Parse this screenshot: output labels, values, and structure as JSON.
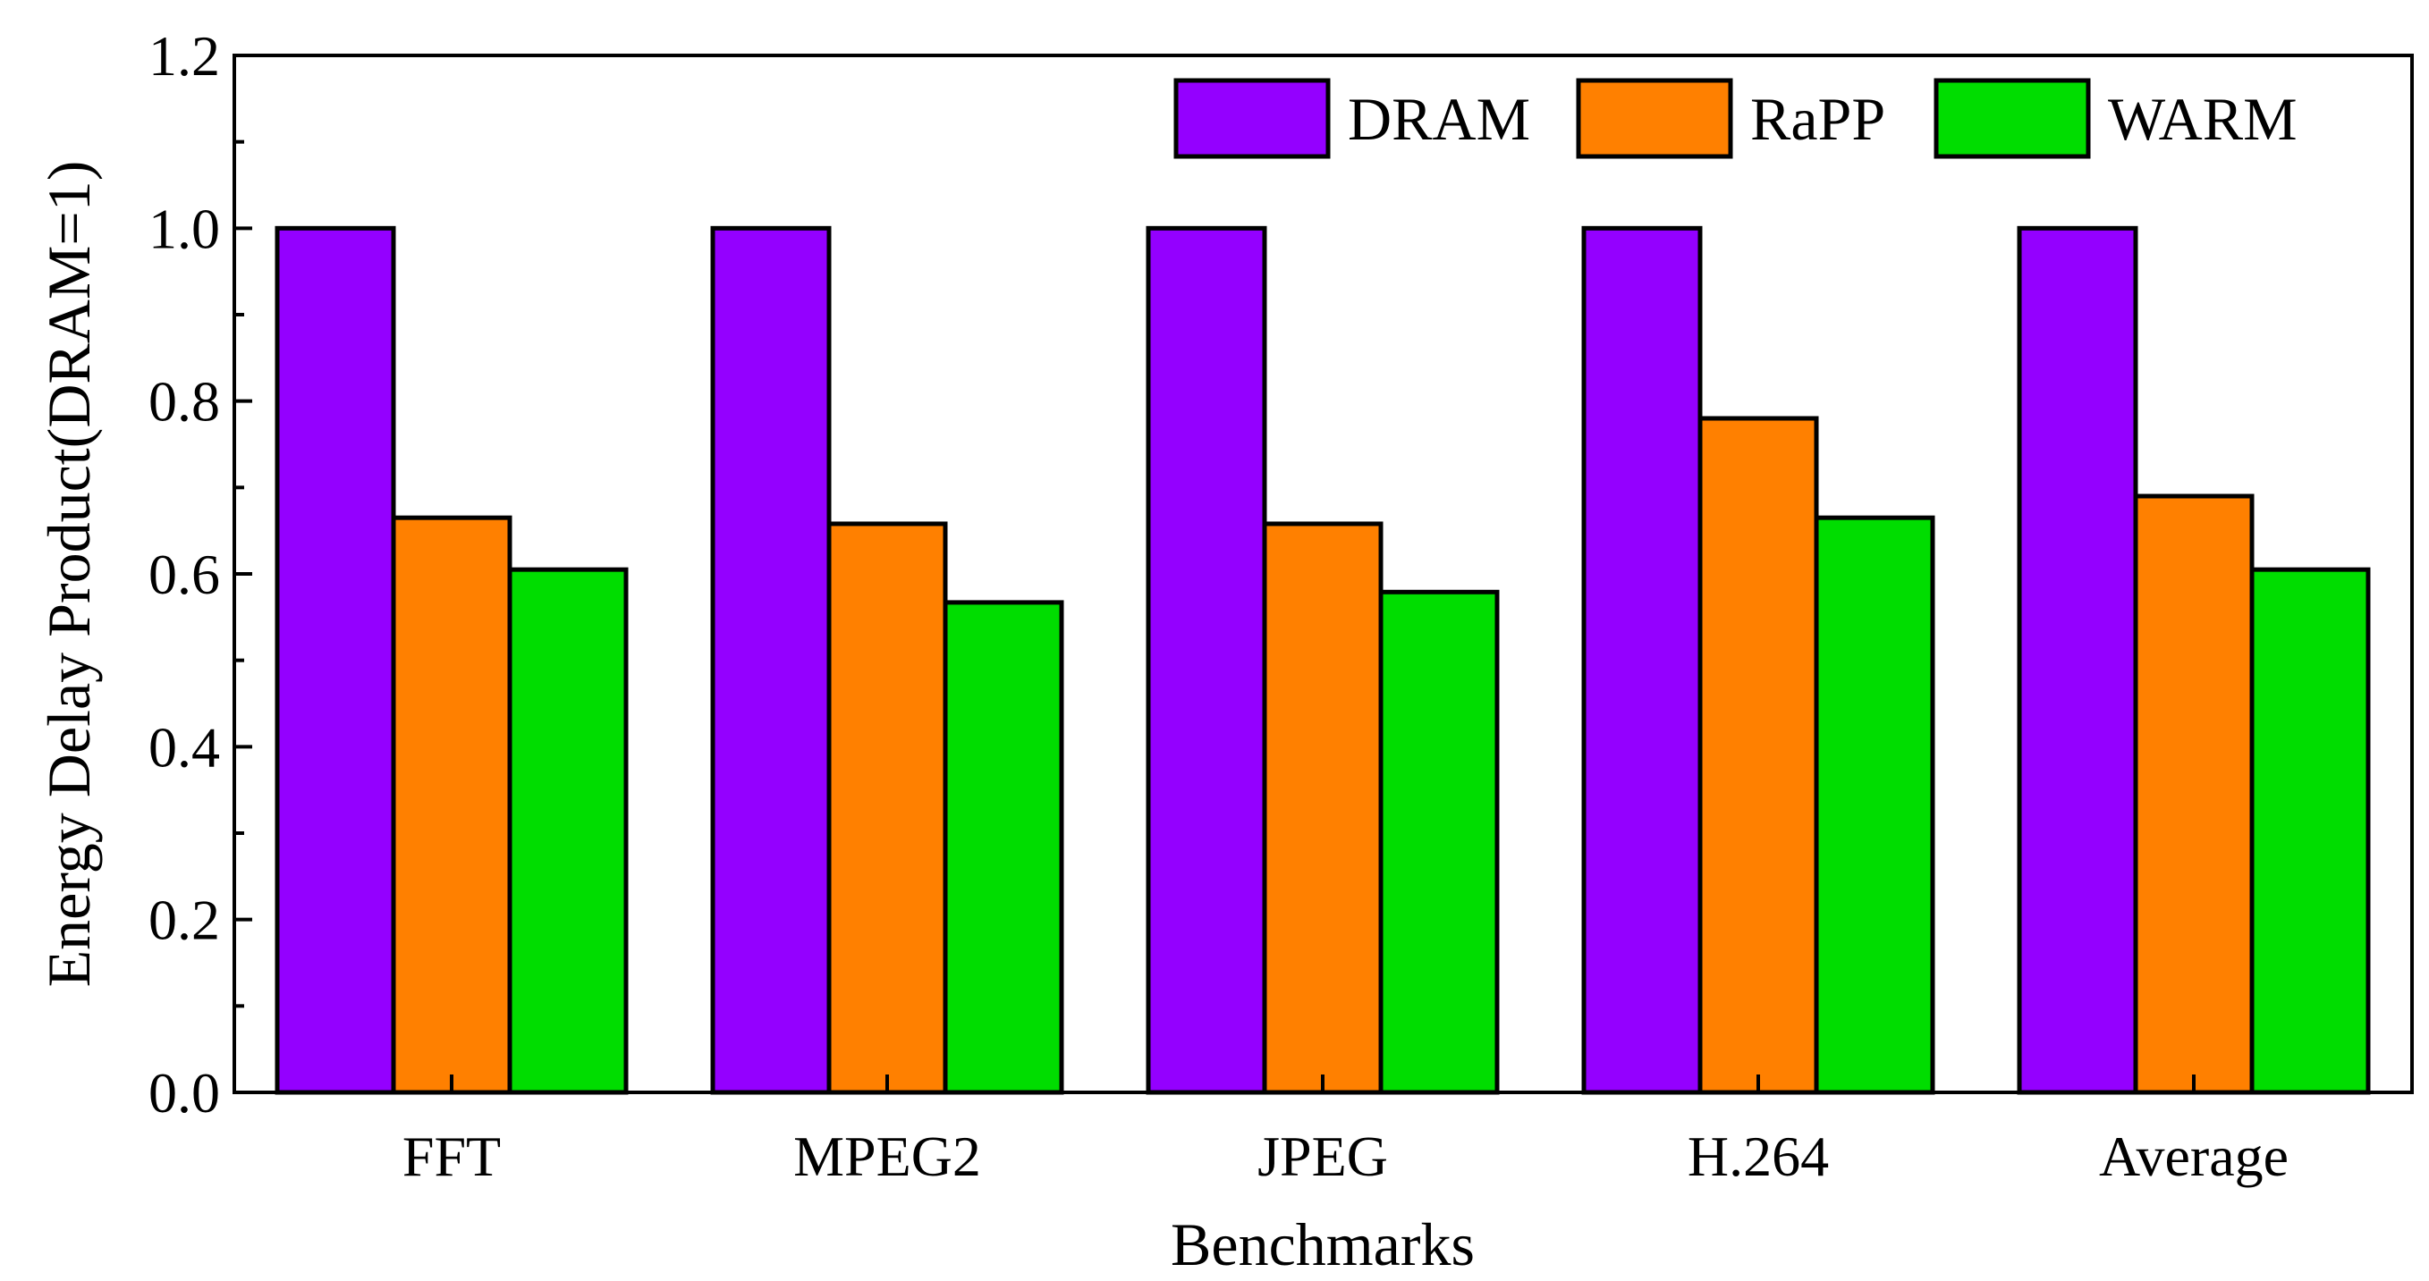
{
  "chart_data": {
    "type": "bar",
    "title": "",
    "xlabel": "Benchmarks",
    "ylabel": "Energy Delay Product(DRAM=1)",
    "ylim": [
      0,
      1.2
    ],
    "yticks": [
      "0.0",
      "0.2",
      "0.4",
      "0.6",
      "0.8",
      "1.0",
      "1.2"
    ],
    "categories": [
      "FFT",
      "MPEG2",
      "JPEG",
      "H.264",
      "Average"
    ],
    "series": [
      {
        "name": "DRAM",
        "color": "#9400ff",
        "values": [
          1.0,
          1.0,
          1.0,
          1.0,
          1.0
        ]
      },
      {
        "name": "RaPP",
        "color": "#ff8000",
        "values": [
          0.665,
          0.658,
          0.658,
          0.78,
          0.69
        ]
      },
      {
        "name": "WARM",
        "color": "#00dd00",
        "values": [
          0.605,
          0.567,
          0.579,
          0.665,
          0.605
        ]
      }
    ],
    "legend_position": "top-right",
    "grid": false
  }
}
